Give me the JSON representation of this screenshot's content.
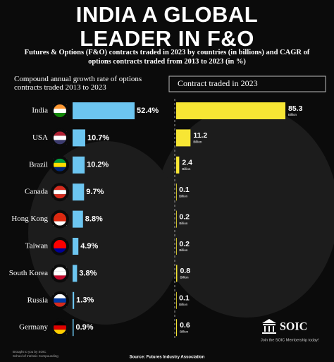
{
  "title": "INDIA A GLOBAL LEADER IN F&O",
  "subtitle": "Futures & Options (F&O) contracts traded in 2023 by countries (in billions) and CAGR of options contracts traded from 2013 to 2023 (in %)",
  "chart_data": [
    {
      "type": "bar",
      "orientation": "horizontal",
      "title": "Compound annual growth rate of options contracts traded 2013 to 2023",
      "categories": [
        "India",
        "USA",
        "Brazil",
        "Canada",
        "Hong Kong",
        "Taiwan",
        "South Korea",
        "Russia",
        "Germany"
      ],
      "values": [
        52.4,
        10.7,
        10.2,
        9.7,
        8.8,
        4.9,
        3.8,
        1.3,
        0.9
      ],
      "value_labels": [
        "52.4%",
        "10.7%",
        "10.2%",
        "9.7%",
        "8.8%",
        "4.9%",
        "3.8%",
        "1.3%",
        "0.9%"
      ],
      "color": "#6cc5f0"
    },
    {
      "type": "bar",
      "orientation": "horizontal",
      "title": "Contract traded in 2023",
      "values": [
        85.3,
        11.2,
        2.4,
        0.1,
        0.2,
        0.2,
        0.8,
        0.1,
        0.6
      ],
      "unit_label": "Billion",
      "color": "#f7e634"
    }
  ],
  "footer": {
    "credit_line1": "Brought to you by SOIC",
    "credit_line2": "School of Intrinsic Compounding",
    "source": "Source: Futures Industry Association",
    "brand": "SOIC",
    "tagline": "Join the SOIC Membership today!"
  }
}
